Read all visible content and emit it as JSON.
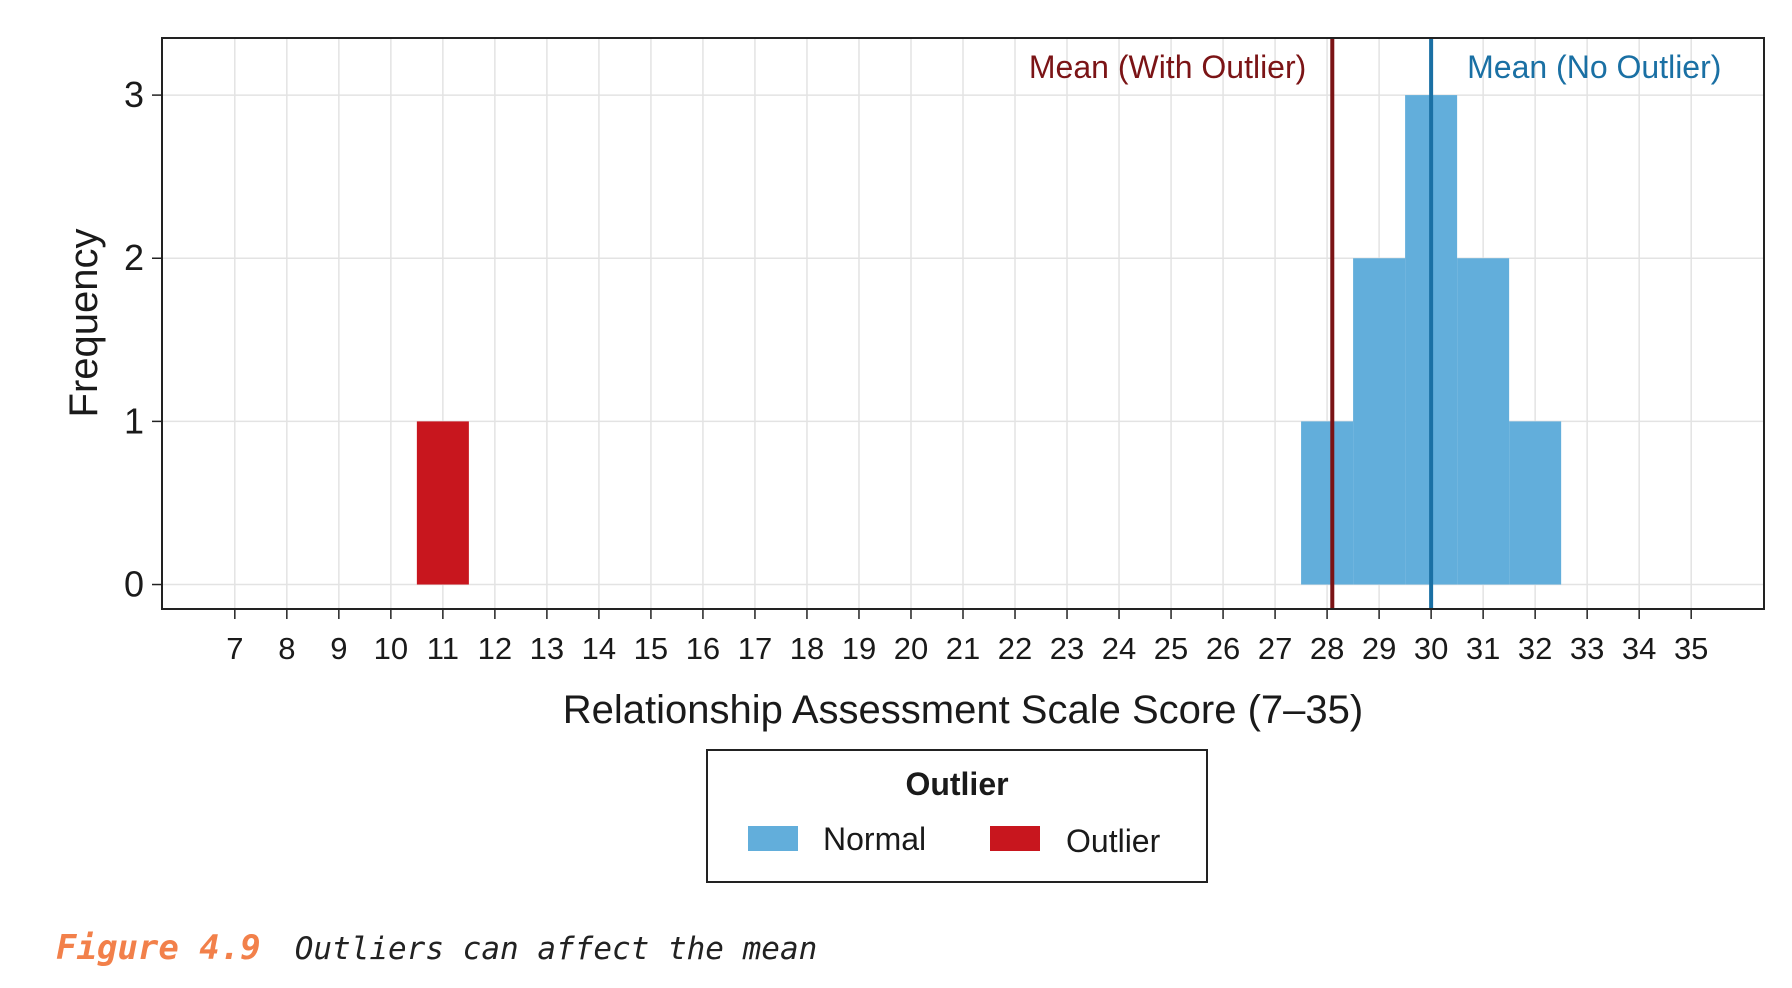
{
  "chart_data": {
    "type": "bar",
    "xlabel": "Relationship Assessment Scale Score (7–35)",
    "ylabel": "Frequency",
    "x_ticks": [
      7,
      8,
      9,
      10,
      11,
      12,
      13,
      14,
      15,
      16,
      17,
      18,
      19,
      20,
      21,
      22,
      23,
      24,
      25,
      26,
      27,
      28,
      29,
      30,
      31,
      32,
      33,
      34,
      35
    ],
    "y_ticks": [
      0,
      1,
      2,
      3
    ],
    "xlim": [
      5.6,
      36.4
    ],
    "ylim": [
      -0.15,
      3.35
    ],
    "grid": true,
    "series": [
      {
        "name": "Normal",
        "color": "#62aedb",
        "bins": [
          {
            "x": 28,
            "count": 1
          },
          {
            "x": 29,
            "count": 2
          },
          {
            "x": 30,
            "count": 3
          },
          {
            "x": 31,
            "count": 2
          },
          {
            "x": 32,
            "count": 1
          }
        ]
      },
      {
        "name": "Outlier",
        "color": "#c8161e",
        "bins": [
          {
            "x": 11,
            "count": 1
          }
        ]
      }
    ],
    "reference_lines": [
      {
        "label": "Mean (With Outlier)",
        "x": 28.1,
        "color": "#7b1416"
      },
      {
        "label": "Mean (No Outlier)",
        "x": 30.0,
        "color": "#1a70a4"
      }
    ],
    "legend": {
      "title": "Outlier",
      "placement": "bottom",
      "items": [
        {
          "label": "Normal",
          "color": "#62aedb"
        },
        {
          "label": "Outlier",
          "color": "#c8161e"
        }
      ]
    }
  },
  "caption": {
    "figure": "Figure 4.9",
    "text": "Outliers can affect the mean"
  }
}
